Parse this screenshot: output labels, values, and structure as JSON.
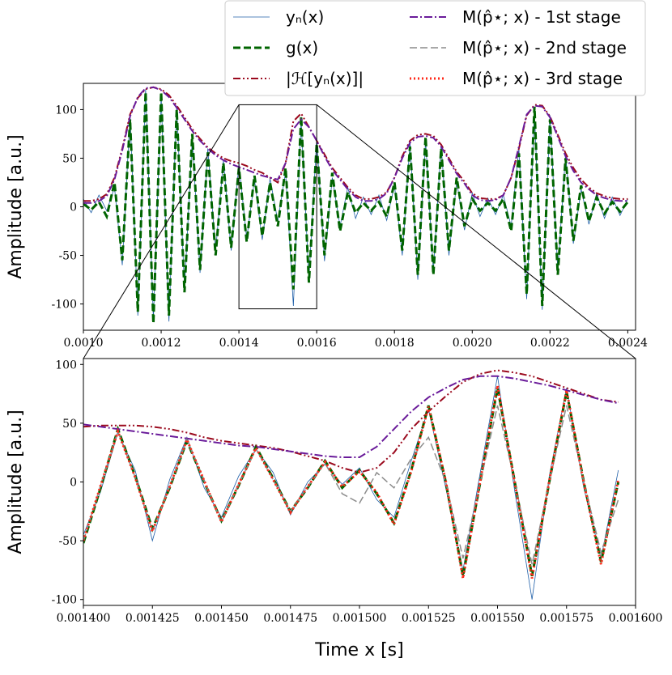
{
  "chart_data": [
    {
      "type": "line",
      "ylabel": "Amplitude [a.u.]",
      "xlim": [
        0.001,
        0.00242
      ],
      "ylim": [
        -127,
        127
      ],
      "xticks": [
        {
          "value": 0.001,
          "label": "0.0010"
        },
        {
          "value": 0.0012,
          "label": "0.0012"
        },
        {
          "value": 0.0014,
          "label": "0.0014"
        },
        {
          "value": 0.0016,
          "label": "0.0016"
        },
        {
          "value": 0.0018,
          "label": "0.0018"
        },
        {
          "value": 0.002,
          "label": "0.0020"
        },
        {
          "value": 0.0022,
          "label": "0.0022"
        },
        {
          "value": 0.0024,
          "label": "0.0024"
        }
      ],
      "yticks": [
        -100,
        -50,
        0,
        50,
        100
      ],
      "x": [
        0.001,
        0.00102,
        0.00104,
        0.00106,
        0.00108,
        0.0011,
        0.00112,
        0.00114,
        0.00116,
        0.00118,
        0.0012,
        0.00122,
        0.00124,
        0.00126,
        0.00128,
        0.0013,
        0.00132,
        0.00134,
        0.00136,
        0.00138,
        0.0014,
        0.00142,
        0.00144,
        0.00146,
        0.00148,
        0.0015,
        0.00152,
        0.00154,
        0.00156,
        0.00158,
        0.0016,
        0.00162,
        0.00164,
        0.00166,
        0.00168,
        0.0017,
        0.00172,
        0.00174,
        0.00176,
        0.00178,
        0.0018,
        0.00182,
        0.00184,
        0.00186,
        0.00188,
        0.0019,
        0.00192,
        0.00194,
        0.00196,
        0.00198,
        0.002,
        0.00202,
        0.00204,
        0.00206,
        0.00208,
        0.0021,
        0.00212,
        0.00214,
        0.00216,
        0.00218,
        0.0022,
        0.00222,
        0.00224,
        0.00226,
        0.00228,
        0.0023,
        0.00232,
        0.00234,
        0.00236,
        0.00238,
        0.0024
      ],
      "series": [
        {
          "color": "#1f5fa8",
          "linestyle": "solid",
          "linewidth": 0.8,
          "values": [
            8,
            -6,
            12,
            -4,
            20,
            -60,
            95,
            -112,
            121,
            -116,
            114,
            -118,
            104,
            -84,
            70,
            -68,
            60,
            -46,
            48,
            -45,
            44,
            -33,
            28,
            -34,
            29,
            -15,
            36,
            -102,
            88,
            -74,
            70,
            -56,
            30,
            -20,
            20,
            -12,
            10,
            -8,
            12,
            -14,
            22,
            -50,
            66,
            -75,
            68,
            -66,
            64,
            -50,
            26,
            -24,
            14,
            -10,
            9,
            -8,
            12,
            -20,
            60,
            -95,
            98,
            -106,
            94,
            -66,
            54,
            -38,
            18,
            -18,
            14,
            -12,
            10,
            -9,
            8
          ]
        },
        {
          "color": "#006400",
          "linestyle": "dashed",
          "linewidth": 3,
          "values": [
            3,
            -3,
            5,
            -10,
            25,
            -55,
            90,
            -108,
            118,
            -120,
            118,
            -112,
            100,
            -88,
            75,
            -65,
            56,
            -50,
            45,
            -42,
            40,
            -36,
            32,
            -30,
            25,
            -20,
            40,
            -85,
            93,
            -78,
            65,
            -50,
            35,
            -25,
            15,
            -6,
            4,
            -4,
            5,
            -10,
            25,
            -45,
            62,
            -70,
            72,
            -70,
            60,
            -45,
            30,
            -20,
            8,
            -4,
            4,
            -4,
            8,
            -25,
            55,
            -90,
            103,
            -102,
            90,
            -70,
            50,
            -35,
            22,
            -15,
            10,
            -7,
            5,
            -5,
            5
          ]
        },
        {
          "color": "#9b0a1e",
          "linestyle": "dashdotdot",
          "linewidth": 2,
          "values": [
            6,
            6,
            8,
            13,
            30,
            60,
            95,
            112,
            121,
            123,
            121,
            115,
            104,
            92,
            80,
            70,
            61,
            55,
            50,
            47,
            45,
            42,
            38,
            35,
            30,
            25,
            45,
            88,
            96,
            82,
            68,
            54,
            40,
            30,
            20,
            12,
            8,
            8,
            10,
            15,
            30,
            52,
            68,
            74,
            75,
            73,
            64,
            50,
            36,
            26,
            14,
            9,
            8,
            8,
            12,
            30,
            60,
            94,
            105,
            104,
            93,
            74,
            55,
            40,
            28,
            20,
            14,
            11,
            9,
            8,
            8
          ]
        },
        {
          "color": "#6a1b9a",
          "linestyle": "dashdot",
          "linewidth": 2,
          "values": [
            4,
            4,
            6,
            11,
            28,
            58,
            93,
            113,
            122,
            123,
            120,
            113,
            102,
            90,
            78,
            68,
            60,
            53,
            48,
            44,
            41,
            38,
            35,
            32,
            30,
            28,
            45,
            80,
            90,
            82,
            68,
            52,
            38,
            28,
            18,
            10,
            6,
            6,
            8,
            14,
            30,
            50,
            66,
            72,
            73,
            71,
            62,
            48,
            34,
            24,
            12,
            7,
            6,
            7,
            12,
            30,
            62,
            95,
            104,
            103,
            92,
            72,
            52,
            37,
            25,
            18,
            12,
            9,
            7,
            6,
            6
          ]
        }
      ]
    },
    {
      "type": "line",
      "xlabel": "Time x [s]",
      "ylabel": "Amplitude [a.u.]",
      "xlim": [
        0.0014,
        0.0016
      ],
      "ylim": [
        -105,
        105
      ],
      "xticks": [
        {
          "value": 0.0014,
          "label": "0.001400"
        },
        {
          "value": 0.001425,
          "label": "0.001425"
        },
        {
          "value": 0.00145,
          "label": "0.001450"
        },
        {
          "value": 0.001475,
          "label": "0.001475"
        },
        {
          "value": 0.0015,
          "label": "0.001500"
        },
        {
          "value": 0.001525,
          "label": "0.001525"
        },
        {
          "value": 0.00155,
          "label": "0.001550"
        },
        {
          "value": 0.001575,
          "label": "0.001575"
        },
        {
          "value": 0.0016,
          "label": "0.001600"
        }
      ],
      "yticks": [
        -100,
        -50,
        0,
        50,
        100
      ],
      "x": [
        0.0014,
        0.00140625,
        0.0014125,
        0.00141875,
        0.001425,
        0.00143125,
        0.0014375,
        0.00144375,
        0.00145,
        0.00145625,
        0.0014625,
        0.00146875,
        0.001475,
        0.00148125,
        0.0014875,
        0.00149375,
        0.0015,
        0.00150625,
        0.0015125,
        0.00151875,
        0.001525,
        0.00153125,
        0.0015375,
        0.00154375,
        0.00155,
        0.00155625,
        0.0015625,
        0.00156875,
        0.001575,
        0.00158125,
        0.0015875,
        0.00159375
      ],
      "series": [
        {
          "name": "yₙ(x)",
          "color": "#1f5fa8",
          "linestyle": "solid",
          "linewidth": 0.8,
          "values": [
            -45,
            -8,
            42,
            10,
            -50,
            2,
            38,
            -5,
            -30,
            5,
            28,
            8,
            -28,
            0,
            15,
            -2,
            12,
            -15,
            -30,
            18,
            62,
            -5,
            -75,
            8,
            90,
            -8,
            -100,
            5,
            80,
            -5,
            -65,
            10
          ]
        },
        {
          "name": "g(x)",
          "color": "#006400",
          "linestyle": "dashed",
          "linewidth": 3,
          "values": [
            -52,
            -5,
            45,
            5,
            -40,
            -5,
            35,
            0,
            -33,
            -3,
            30,
            3,
            -25,
            -5,
            18,
            -5,
            10,
            -10,
            -35,
            10,
            65,
            0,
            -80,
            0,
            80,
            0,
            -80,
            0,
            77,
            0,
            -68,
            0
          ]
        },
        {
          "name": "|ℋ[yₙ(x)]|",
          "color": "#9b0a1e",
          "linestyle": "dashdotdot",
          "linewidth": 2,
          "values": [
            47,
            48,
            48,
            48,
            47,
            45,
            42,
            38,
            35,
            33,
            31,
            29,
            26,
            22,
            18,
            12,
            8,
            12,
            25,
            45,
            60,
            73,
            85,
            92,
            95,
            93,
            90,
            85,
            80,
            75,
            70,
            68
          ]
        },
        {
          "name": "M(p̂⋆; x) - 1st stage",
          "color": "#6a1b9a",
          "linestyle": "dashdot",
          "linewidth": 2,
          "values": [
            49,
            47,
            45,
            43,
            41,
            39,
            37,
            35,
            33,
            31,
            30,
            28,
            26,
            24,
            22,
            21,
            21,
            30,
            45,
            60,
            72,
            80,
            87,
            90,
            90,
            88,
            85,
            82,
            78,
            74,
            70,
            67
          ]
        },
        {
          "name": "M(p̂⋆; x) - 2nd stage",
          "color": "#8c8c8c",
          "linestyle": "dashed",
          "linewidth": 1.5,
          "values": [
            -50,
            -3,
            43,
            4,
            -42,
            -4,
            36,
            1,
            -34,
            -2,
            28,
            2,
            -25,
            -4,
            16,
            -10,
            -18,
            8,
            -5,
            20,
            38,
            0,
            -65,
            0,
            65,
            0,
            -70,
            0,
            65,
            0,
            -60,
            -15
          ]
        },
        {
          "name": "M(p̂⋆; x) - 3rd stage",
          "color": "#ff2a1a",
          "linestyle": "dotted",
          "linewidth": 3,
          "values": [
            -50,
            -3,
            43,
            4,
            -42,
            -4,
            36,
            1,
            -34,
            -2,
            29,
            2,
            -26,
            -4,
            17,
            -4,
            9,
            -9,
            -36,
            9,
            64,
            1,
            -82,
            1,
            82,
            -1,
            -82,
            1,
            78,
            -1,
            -70,
            2
          ]
        }
      ]
    }
  ]
}
